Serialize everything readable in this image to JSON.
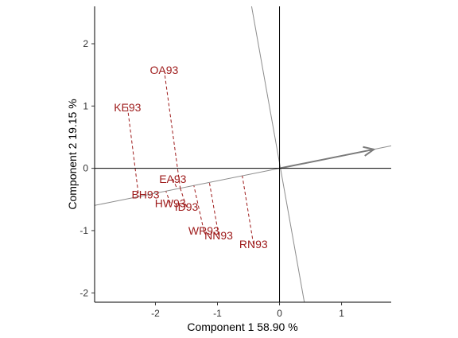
{
  "chart_data": {
    "type": "scatter",
    "subtype": "biplot-projection",
    "title": "",
    "xlabel": "Component 1 58.90 %",
    "ylabel": "Component 2 19.15 %",
    "xlim": [
      -2.98,
      1.8
    ],
    "ylim": [
      -2.15,
      2.6
    ],
    "xticks": [
      -2,
      -1,
      0,
      1
    ],
    "yticks": [
      -2,
      -1,
      0,
      1,
      2
    ],
    "grid": false,
    "label_color": "#9e1b1b",
    "line_color": "#8c8c8c",
    "reference_axis": {
      "direction": [
        1,
        0.2
      ],
      "arrow_at": 1.52
    },
    "perpendicular_axis": {
      "from": [
        -0.45,
        2.6
      ],
      "to": [
        0.4,
        -2.15
      ]
    },
    "points": [
      {
        "label": "OA93",
        "x": -1.86,
        "y": 1.58,
        "proj": [
          -1.6,
          -0.32
        ]
      },
      {
        "label": "KE93",
        "x": -2.45,
        "y": 0.98,
        "proj": [
          -2.27,
          -0.45
        ]
      },
      {
        "label": "EA93",
        "x": -1.72,
        "y": -0.17,
        "proj": [
          -1.65,
          -0.33
        ]
      },
      {
        "label": "BH93",
        "x": -2.16,
        "y": -0.42,
        "proj": [
          -2.16,
          -0.43
        ]
      },
      {
        "label": "HW93",
        "x": -1.76,
        "y": -0.56,
        "proj": [
          -1.83,
          -0.37
        ]
      },
      {
        "label": "ID93",
        "x": -1.5,
        "y": -0.62,
        "proj": [
          -1.6,
          -0.32
        ]
      },
      {
        "label": "WR93",
        "x": -1.22,
        "y": -1.0,
        "proj": [
          -1.38,
          -0.28
        ]
      },
      {
        "label": "NN93",
        "x": -0.98,
        "y": -1.08,
        "proj": [
          -1.13,
          -0.23
        ]
      },
      {
        "label": "RN93",
        "x": -0.42,
        "y": -1.22,
        "proj": [
          -0.6,
          -0.12
        ]
      }
    ]
  }
}
